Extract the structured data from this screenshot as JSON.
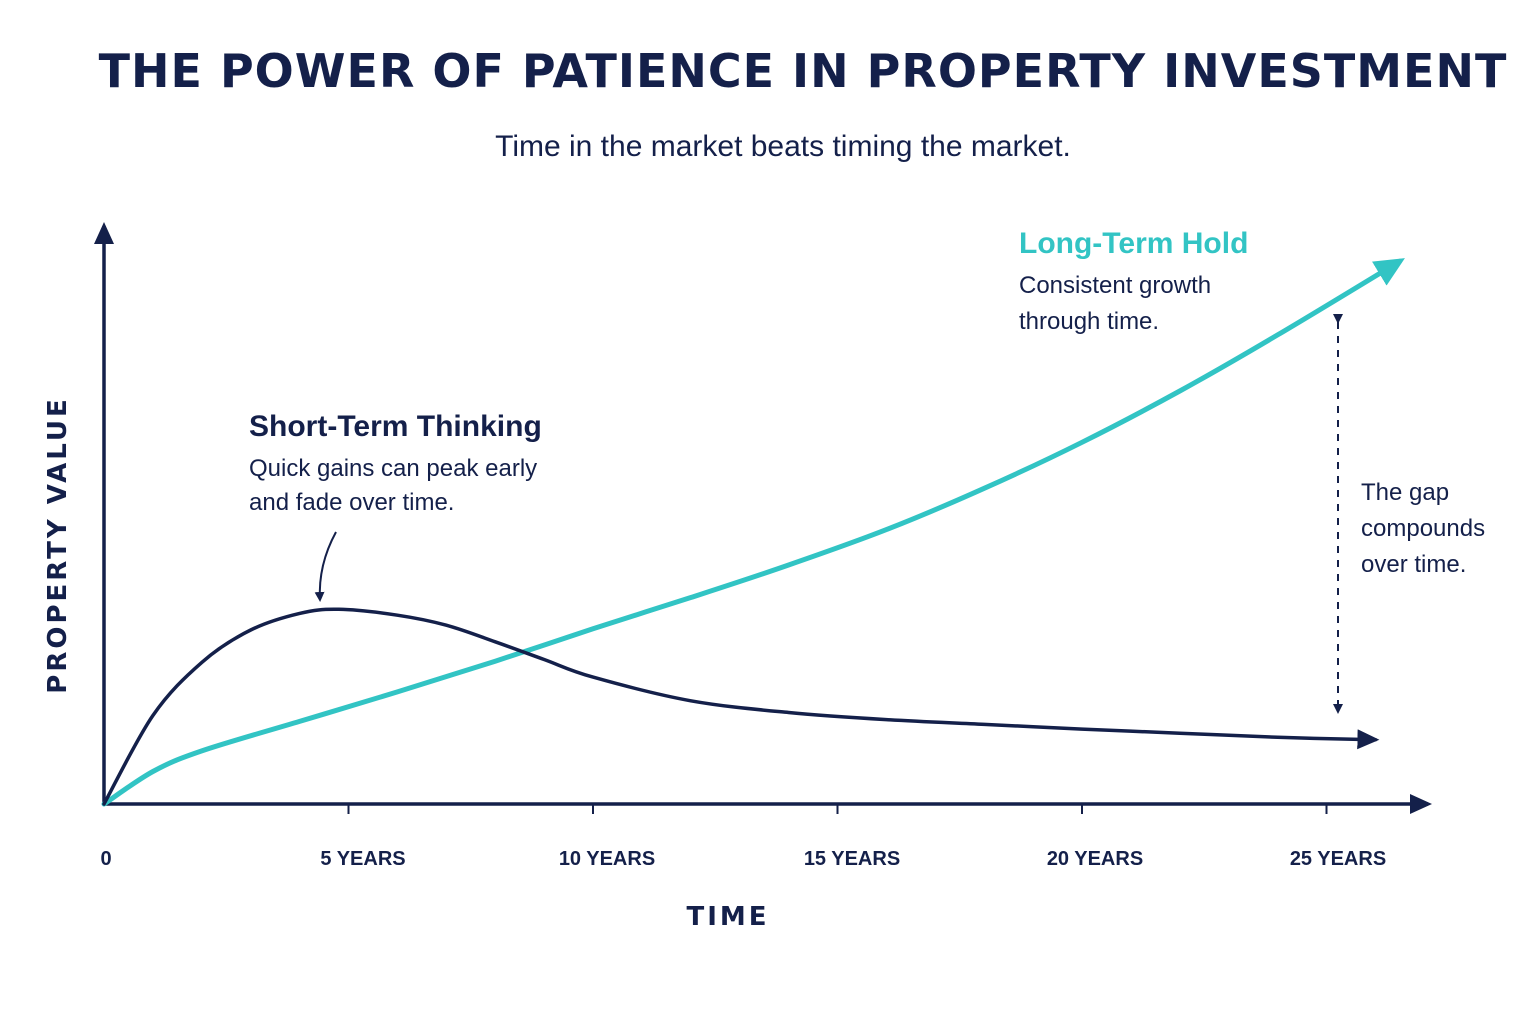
{
  "title": "THE POWER OF PATIENCE IN PROPERTY INVESTMENT",
  "subtitle": "Time in the market beats timing the market.",
  "colors": {
    "navy": "#14204a",
    "teal": "#32c4c4"
  },
  "chart_data": {
    "type": "line",
    "title": "THE POWER OF PATIENCE IN PROPERTY INVESTMENT",
    "subtitle": "Time in the market beats timing the market.",
    "xlabel": "TIME",
    "ylabel": "PROPERTY VALUE",
    "x_ticks": [
      "0",
      "5 YEARS",
      "10 YEARS",
      "15 YEARS",
      "20 YEARS",
      "25 YEARS"
    ],
    "x_tick_values": [
      0,
      5,
      10,
      15,
      20,
      25
    ],
    "xlim": [
      0,
      27.5
    ],
    "ylim": [
      0,
      100
    ],
    "y_ticks_shown": false,
    "grid": false,
    "series": [
      {
        "name": "Short-Term Thinking",
        "color": "#14204a",
        "x": [
          0,
          1,
          2,
          3,
          4,
          4.8,
          6,
          7,
          8,
          9,
          10,
          12,
          14,
          16,
          18,
          20,
          22,
          24,
          26
        ],
        "y": [
          0,
          15,
          24,
          29.5,
          32.3,
          33,
          32,
          30.3,
          27.5,
          24.5,
          21.5,
          17.5,
          15.5,
          14.3,
          13.5,
          12.7,
          12,
          11.3,
          10.9
        ]
      },
      {
        "name": "Long-Term Hold",
        "color": "#32c4c4",
        "x": [
          0,
          1,
          2,
          4,
          6,
          8,
          10,
          12,
          14,
          16,
          18,
          20,
          22,
          24,
          26.5
        ],
        "y": [
          0,
          5.5,
          9,
          14,
          19,
          24.2,
          29.7,
          35,
          40.5,
          46.5,
          53.5,
          61.3,
          70,
          79.5,
          92
        ]
      }
    ],
    "annotations": [
      {
        "title": "Short-Term Thinking",
        "text_lines": [
          "Quick gains can peak early",
          "and fade over time."
        ]
      },
      {
        "title": "Long-Term Hold",
        "text_lines": [
          "Consistent growth",
          "through time."
        ]
      },
      {
        "title": "",
        "text_lines": [
          "The gap",
          "compounds",
          "over time."
        ]
      }
    ]
  }
}
